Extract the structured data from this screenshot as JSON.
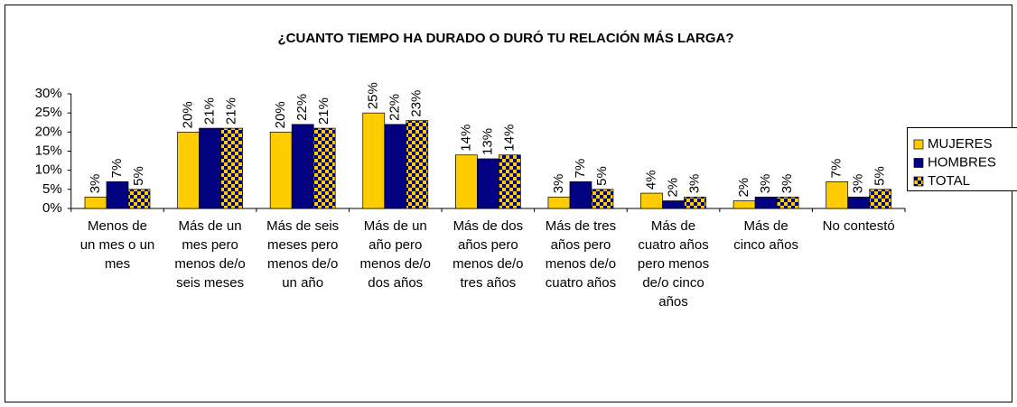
{
  "chart_data": {
    "type": "bar",
    "title": "¿CUANTO TIEMPO HA DURADO O DURÓ TU RELACIÓN MÁS LARGA?",
    "categories": [
      "Menos de un mes o un mes",
      "Más de un mes pero menos de/o seis meses",
      "Más de seis meses pero menos de/o un año",
      "Más de un año pero menos de/o dos años",
      "Más de dos años pero menos de/o tres años",
      "Más de tres años pero menos de/o cuatro años",
      "Más de cuatro años pero menos de/o cinco años",
      "Más de cinco años",
      "No contestó"
    ],
    "series": [
      {
        "name": "MUJERES",
        "color": "#ffcc00",
        "values": [
          3,
          20,
          20,
          25,
          14,
          3,
          4,
          2,
          7
        ],
        "value_labels": [
          "3%",
          "20%",
          "20%",
          "25%",
          "14%",
          "3%",
          "4%",
          "2%",
          "7%"
        ]
      },
      {
        "name": "HOMBRES",
        "color": "#000080",
        "values": [
          7,
          21,
          22,
          22,
          13,
          7,
          2,
          3,
          3
        ],
        "value_labels": [
          "7%",
          "21%",
          "22%",
          "22%",
          "13%",
          "7%",
          "2%",
          "3%",
          "3%"
        ]
      },
      {
        "name": "TOTAL",
        "color": [
          "#ffcc00",
          "#000080"
        ],
        "values": [
          5,
          21,
          21,
          23,
          14,
          5,
          3,
          3,
          5
        ],
        "value_labels": [
          "5%",
          "21%",
          "21%",
          "23%",
          "14%",
          "5%",
          "3%",
          "3%",
          "5%"
        ]
      }
    ],
    "ylim": [
      0,
      30
    ],
    "yticks": [
      {
        "value": 0,
        "label": "0%"
      },
      {
        "value": 5,
        "label": "5%"
      },
      {
        "value": 10,
        "label": "10%"
      },
      {
        "value": 15,
        "label": "15%"
      },
      {
        "value": 20,
        "label": "20%"
      },
      {
        "value": 25,
        "label": "25%"
      },
      {
        "value": 30,
        "label": "30%"
      }
    ],
    "grid": false,
    "legend": "right"
  }
}
